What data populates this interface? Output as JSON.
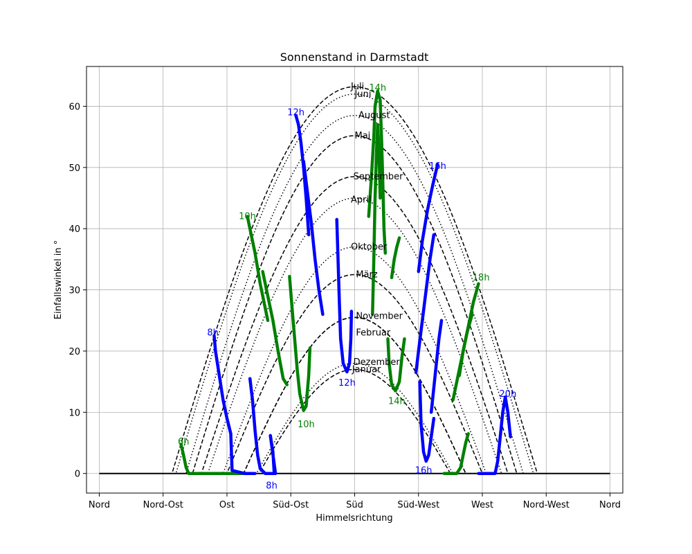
{
  "chart_data": {
    "type": "line",
    "title": "Sonnenstand in Darmstadt",
    "xlabel": "Himmelsrichtung",
    "ylabel": "Einfallswinkel in °",
    "xlim": [
      -10,
      410
    ],
    "ylim": [
      -3.2,
      66.5
    ],
    "x_ticks": [
      {
        "value": 0,
        "label": "Nord"
      },
      {
        "value": 50,
        "label": "Nord-Ost"
      },
      {
        "value": 100,
        "label": "Ost"
      },
      {
        "value": 150,
        "label": "Süd-Ost"
      },
      {
        "value": 200,
        "label": "Süd"
      },
      {
        "value": 250,
        "label": "Süd-West"
      },
      {
        "value": 300,
        "label": "West"
      },
      {
        "value": 350,
        "label": "Nord-West"
      },
      {
        "value": 400,
        "label": "Nord"
      }
    ],
    "y_ticks": [
      0,
      10,
      20,
      30,
      40,
      50,
      60
    ],
    "grid": true,
    "month_curves": [
      {
        "name": "Januar",
        "peak": 18.0,
        "half_width": 77,
        "style": "dotted"
      },
      {
        "name": "Februar",
        "peak": 25.5,
        "half_width": 87,
        "style": "dashed"
      },
      {
        "name": "März",
        "peak": 32.5,
        "half_width": 100,
        "style": "dashed"
      },
      {
        "name": "April",
        "peak": 45.0,
        "half_width": 115,
        "style": "dotted"
      },
      {
        "name": "Mai",
        "peak": 55.2,
        "half_width": 127,
        "style": "dashed"
      },
      {
        "name": "Juni",
        "peak": 63.2,
        "half_width": 143,
        "style": "dashed"
      },
      {
        "name": "Juli",
        "peak": 62.0,
        "half_width": 140,
        "style": "dotted"
      },
      {
        "name": "August",
        "peak": 58.5,
        "half_width": 132,
        "style": "dotted"
      },
      {
        "name": "September",
        "peak": 48.5,
        "half_width": 120,
        "style": "dashed"
      },
      {
        "name": "Oktober",
        "peak": 37.0,
        "half_width": 103,
        "style": "dotted"
      },
      {
        "name": "November",
        "peak": 25.5,
        "half_width": 87,
        "style": "dashed"
      },
      {
        "name": "Dezember",
        "peak": 17.0,
        "half_width": 75,
        "style": "dashed"
      }
    ],
    "month_labels": [
      {
        "text": "Juli",
        "x": 197,
        "y": 63.2
      },
      {
        "text": "Juni",
        "x": 200,
        "y": 62.0
      },
      {
        "text": "August",
        "x": 203,
        "y": 58.5
      },
      {
        "text": "Mai",
        "x": 200,
        "y": 55.2
      },
      {
        "text": "September",
        "x": 199,
        "y": 48.5
      },
      {
        "text": "April",
        "x": 197,
        "y": 44.7
      },
      {
        "text": "Oktober",
        "x": 197,
        "y": 37.0
      },
      {
        "text": "März",
        "x": 201,
        "y": 32.5
      },
      {
        "text": "November",
        "x": 201,
        "y": 25.7
      },
      {
        "text": "Februar",
        "x": 201,
        "y": 23.0
      },
      {
        "text": "Dezember",
        "x": 199,
        "y": 18.2
      },
      {
        "text": "Januar",
        "x": 198,
        "y": 17.0
      }
    ],
    "analemmas": [
      {
        "name": "6h",
        "color": "#008000",
        "points": [
          [
            64,
            4.8
          ],
          [
            66,
            3.0
          ],
          [
            68,
            1.0
          ],
          [
            70,
            0
          ],
          [
            80,
            0
          ],
          [
            95,
            0
          ],
          [
            110,
            0
          ],
          [
            116,
            0
          ]
        ]
      },
      {
        "name": "8h",
        "color": "#0000ff",
        "points": [
          [
            90,
            22.5
          ],
          [
            91,
            20
          ],
          [
            94,
            16
          ],
          [
            97,
            12
          ],
          [
            100,
            9
          ],
          [
            103,
            6.5
          ],
          [
            104,
            0.5
          ],
          [
            110,
            0.2
          ],
          [
            114,
            0
          ],
          [
            122,
            0
          ]
        ]
      },
      {
        "name": "8h-b",
        "color": "#0000ff",
        "points": [
          [
            118,
            15.5
          ],
          [
            120,
            12
          ],
          [
            122,
            7
          ],
          [
            124,
            3
          ],
          [
            126,
            0.8
          ],
          [
            130,
            0
          ],
          [
            138,
            0
          ],
          [
            134,
            6.2
          ],
          [
            136,
            3.5
          ],
          [
            137,
            0
          ]
        ]
      },
      {
        "name": "10h",
        "color": "#008000",
        "points": [
          [
            116,
            42
          ],
          [
            118,
            40
          ],
          [
            122,
            36
          ],
          [
            126,
            31
          ],
          [
            130,
            27
          ],
          [
            132,
            25
          ]
        ]
      },
      {
        "name": "10h-b",
        "color": "#008000",
        "points": [
          [
            128,
            33
          ],
          [
            132,
            29
          ],
          [
            136,
            25
          ],
          [
            140,
            20
          ],
          [
            144,
            15.5
          ],
          [
            147,
            14.5
          ]
        ]
      },
      {
        "name": "10h-c",
        "color": "#008000",
        "points": [
          [
            149,
            32.2
          ],
          [
            151,
            27
          ],
          [
            153,
            22
          ],
          [
            155,
            17
          ],
          [
            157,
            13
          ],
          [
            160,
            10.3
          ],
          [
            162,
            11
          ],
          [
            164,
            16
          ],
          [
            165,
            20.5
          ]
        ]
      },
      {
        "name": "12h",
        "color": "#0000ff",
        "points": [
          [
            154,
            58.5
          ],
          [
            156,
            57
          ],
          [
            158,
            54
          ],
          [
            160,
            50
          ],
          [
            162,
            45
          ],
          [
            164,
            39
          ]
        ]
      },
      {
        "name": "12h-b",
        "color": "#0000ff",
        "points": [
          [
            160,
            51
          ],
          [
            163,
            46
          ],
          [
            166,
            41
          ],
          [
            169,
            35
          ],
          [
            172,
            30
          ],
          [
            175,
            26
          ]
        ]
      },
      {
        "name": "12h-c",
        "color": "#0000ff",
        "points": [
          [
            186,
            41.5
          ],
          [
            187,
            35
          ],
          [
            188,
            28
          ],
          [
            189,
            22
          ],
          [
            191,
            18
          ],
          [
            194,
            16.6
          ],
          [
            196,
            18
          ],
          [
            197,
            22
          ],
          [
            197.5,
            26.5
          ]
        ]
      },
      {
        "name": "14h",
        "color": "#008000",
        "points": [
          [
            211,
            42
          ],
          [
            213,
            48
          ],
          [
            215,
            55
          ],
          [
            216,
            60
          ],
          [
            218,
            62.5
          ],
          [
            220,
            61
          ],
          [
            221,
            55
          ],
          [
            222,
            48
          ],
          [
            223,
            40
          ],
          [
            224,
            36
          ]
        ]
      },
      {
        "name": "14h-b",
        "color": "#008000",
        "points": [
          [
            214,
            26
          ],
          [
            215,
            35
          ],
          [
            216,
            45
          ],
          [
            217,
            52
          ],
          [
            218,
            57
          ],
          [
            219,
            53
          ],
          [
            220,
            45
          ]
        ]
      },
      {
        "name": "14h-c",
        "color": "#008000",
        "points": [
          [
            226,
            22
          ],
          [
            227,
            18
          ],
          [
            229,
            14.5
          ],
          [
            232,
            13.5
          ],
          [
            235,
            15
          ],
          [
            237,
            19
          ],
          [
            239,
            22
          ]
        ]
      },
      {
        "name": "14h-d",
        "color": "#008000",
        "points": [
          [
            229,
            32
          ],
          [
            231,
            35
          ],
          [
            233,
            37
          ],
          [
            235,
            38.5
          ]
        ]
      },
      {
        "name": "16h",
        "color": "#0000ff",
        "points": [
          [
            250,
            33
          ],
          [
            253,
            38
          ],
          [
            257,
            43
          ],
          [
            261,
            47
          ],
          [
            265,
            50.5
          ]
        ]
      },
      {
        "name": "16h-b",
        "color": "#0000ff",
        "points": [
          [
            248,
            16.5
          ],
          [
            250,
            20
          ],
          [
            253,
            25
          ],
          [
            256,
            30
          ],
          [
            259,
            35
          ],
          [
            262,
            39
          ]
        ]
      },
      {
        "name": "16h-c",
        "color": "#0000ff",
        "points": [
          [
            251,
            15
          ],
          [
            252,
            8
          ],
          [
            254,
            3.5
          ],
          [
            256,
            2
          ],
          [
            258,
            3
          ],
          [
            260,
            6
          ],
          [
            262,
            9
          ]
        ]
      },
      {
        "name": "16h-d",
        "color": "#0000ff",
        "points": [
          [
            260,
            10
          ],
          [
            262,
            14
          ],
          [
            264,
            18
          ],
          [
            266,
            22
          ],
          [
            268,
            25
          ]
        ]
      },
      {
        "name": "18h",
        "color": "#008000",
        "points": [
          [
            282,
            16
          ],
          [
            285,
            20
          ],
          [
            289,
            24
          ],
          [
            293,
            28
          ],
          [
            297,
            31
          ]
        ]
      },
      {
        "name": "18h-b",
        "color": "#008000",
        "points": [
          [
            277,
            12
          ],
          [
            280,
            15
          ],
          [
            284,
            19
          ],
          [
            288,
            23
          ],
          [
            292,
            26
          ]
        ]
      },
      {
        "name": "18h-c",
        "color": "#008000",
        "points": [
          [
            270,
            0
          ],
          [
            275,
            0
          ],
          [
            280,
            0
          ],
          [
            283,
            1
          ],
          [
            285,
            3
          ],
          [
            287,
            5
          ],
          [
            289,
            6.5
          ]
        ]
      },
      {
        "name": "20h",
        "color": "#0000ff",
        "points": [
          [
            297,
            0
          ],
          [
            300,
            0
          ],
          [
            305,
            0
          ],
          [
            310,
            0
          ],
          [
            312,
            2
          ],
          [
            314,
            6
          ],
          [
            316,
            10
          ],
          [
            318,
            12.5
          ],
          [
            320,
            10
          ],
          [
            322,
            6
          ]
        ]
      }
    ],
    "hour_labels": [
      {
        "text": "6h",
        "x": 66,
        "y": 5.2,
        "color": "#008000"
      },
      {
        "text": "8h",
        "x": 89,
        "y": 23.0,
        "color": "#0000ff"
      },
      {
        "text": "8h",
        "x": 135,
        "y": -2.0,
        "color": "#0000ff"
      },
      {
        "text": "10h",
        "x": 116,
        "y": 42.0,
        "color": "#008000"
      },
      {
        "text": "10h",
        "x": 162,
        "y": 8.0,
        "color": "#008000"
      },
      {
        "text": "12h",
        "x": 154,
        "y": 59.0,
        "color": "#0000ff"
      },
      {
        "text": "12h",
        "x": 194,
        "y": 14.8,
        "color": "#0000ff"
      },
      {
        "text": "14h",
        "x": 218,
        "y": 63.0,
        "color": "#008000"
      },
      {
        "text": "14h",
        "x": 233,
        "y": 11.8,
        "color": "#008000"
      },
      {
        "text": "16h",
        "x": 265,
        "y": 50.2,
        "color": "#0000ff"
      },
      {
        "text": "16h",
        "x": 254,
        "y": 0.5,
        "color": "#0000ff"
      },
      {
        "text": "18h",
        "x": 299,
        "y": 32.0,
        "color": "#008000"
      },
      {
        "text": "20h",
        "x": 320,
        "y": 13.0,
        "color": "#0000ff"
      }
    ]
  }
}
